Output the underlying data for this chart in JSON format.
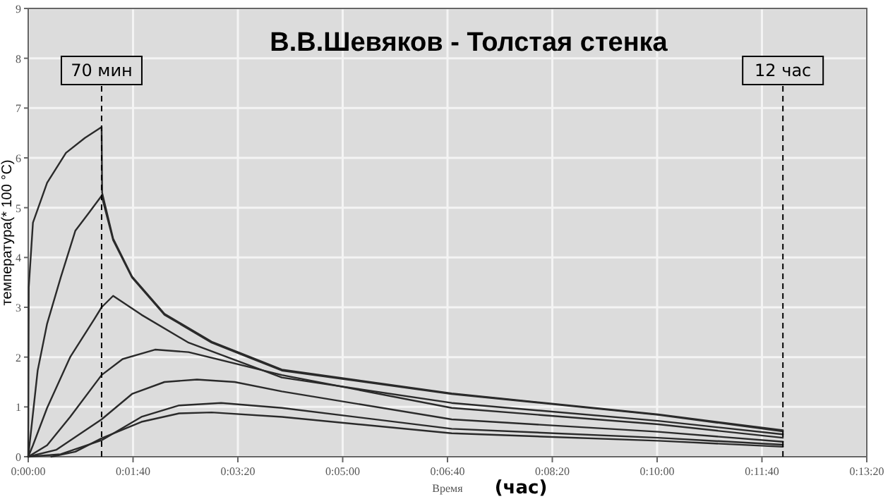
{
  "chart_data": {
    "type": "line",
    "title": "В.В.Шевяков - Толстая стенка",
    "xlabel": "Время",
    "ylabel": "температура(* 100 °C)",
    "annotations": [
      "(час)"
    ],
    "xlim": [
      0,
      800
    ],
    "xticks": [
      {
        "value": 0,
        "label": "0:00:00"
      },
      {
        "value": 100,
        "label": "0:01:40"
      },
      {
        "value": 200,
        "label": "0:03:20"
      },
      {
        "value": 300,
        "label": "0:05:00"
      },
      {
        "value": 400,
        "label": "0:06:40"
      },
      {
        "value": 500,
        "label": "0:08:20"
      },
      {
        "value": 600,
        "label": "0:10:00"
      },
      {
        "value": 700,
        "label": "0:11:40"
      },
      {
        "value": 800,
        "label": "0:13:20"
      }
    ],
    "ylim": [
      0,
      9
    ],
    "yticks": [
      0,
      1,
      2,
      3,
      4,
      5,
      6,
      7,
      8,
      9
    ],
    "grid": true,
    "marker": "none",
    "line_style": "solid",
    "ref_lines": [
      {
        "axis": "x",
        "value": 70,
        "label": "70 мин",
        "color": "#000000",
        "line_style": "dashed"
      },
      {
        "axis": "x",
        "value": 720,
        "label": "12 час",
        "color": "#000000",
        "line_style": "dashed"
      }
    ],
    "series": [
      {
        "color": "#2a2a2a",
        "x": [
          0,
          0.5,
          4.5,
          18,
          36,
          54,
          70,
          70.5,
          81,
          99,
          130,
          175,
          242,
          404,
          601,
          720
        ],
        "values": [
          0,
          3.4,
          4.7,
          5.5,
          6.1,
          6.4,
          6.62,
          5.3,
          4.38,
          3.62,
          2.87,
          2.31,
          1.75,
          1.27,
          0.85,
          0.53
        ]
      },
      {
        "color": "#2a2a2a",
        "x": [
          0,
          9,
          18,
          31,
          45,
          58,
          70,
          81,
          99,
          130,
          175,
          242,
          404,
          601,
          720
        ],
        "values": [
          0,
          1.73,
          2.67,
          3.6,
          4.54,
          4.9,
          5.24,
          4.35,
          3.6,
          2.85,
          2.29,
          1.73,
          1.26,
          0.84,
          0.51
        ]
      },
      {
        "color": "#2a2a2a",
        "x": [
          0,
          4.5,
          18,
          40,
          63,
          70,
          81,
          108,
          153,
          242,
          404,
          601,
          720
        ],
        "values": [
          0,
          0.23,
          0.98,
          2.0,
          2.76,
          3.0,
          3.23,
          2.85,
          2.29,
          1.59,
          1.08,
          0.72,
          0.45
        ]
      },
      {
        "color": "#2a2a2a",
        "x": [
          0,
          18,
          40,
          70,
          90,
          121,
          153,
          242,
          404,
          601,
          720
        ],
        "values": [
          0,
          0.23,
          0.8,
          1.64,
          1.96,
          2.15,
          2.1,
          1.64,
          0.98,
          0.65,
          0.38
        ]
      },
      {
        "color": "#2a2a2a",
        "x": [
          0,
          27,
          70,
          99,
          130,
          161,
          197,
          242,
          404,
          601,
          720
        ],
        "values": [
          0,
          0.14,
          0.75,
          1.26,
          1.5,
          1.55,
          1.5,
          1.31,
          0.75,
          0.5,
          0.3
        ]
      },
      {
        "color": "#2a2a2a",
        "x": [
          0,
          31,
          70,
          108,
          144,
          184,
          242,
          404,
          601,
          720
        ],
        "values": [
          0,
          0.05,
          0.33,
          0.8,
          1.03,
          1.08,
          0.98,
          0.56,
          0.38,
          0.24
        ]
      },
      {
        "color": "#2a2a2a",
        "x": [
          22,
          45,
          70,
          108,
          144,
          175,
          242,
          404,
          601,
          720
        ],
        "values": [
          0,
          0.1,
          0.37,
          0.7,
          0.87,
          0.89,
          0.8,
          0.47,
          0.32,
          0.2
        ]
      }
    ]
  }
}
